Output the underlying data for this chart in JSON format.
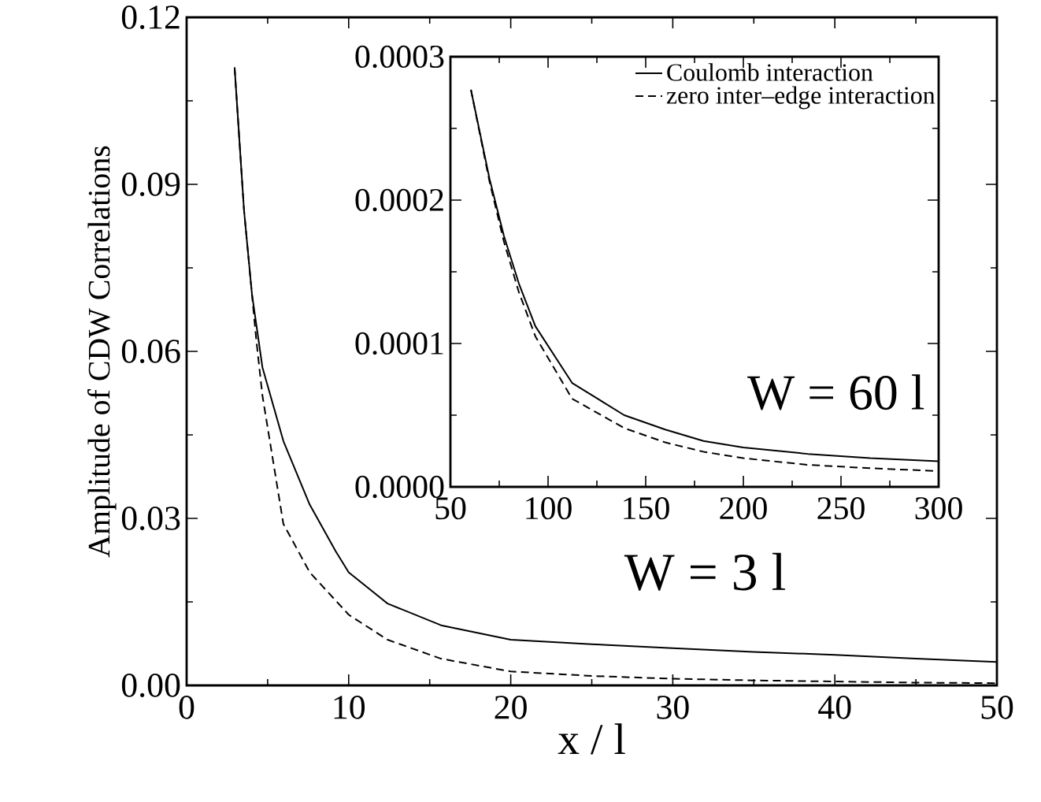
{
  "chart_data": [
    {
      "type": "line",
      "xlabel": "x / l",
      "ylabel": "Amplitude of CDW Correlations",
      "xlim": [
        0,
        50
      ],
      "xticks": [
        0,
        10,
        20,
        30,
        40,
        50
      ],
      "ylim": [
        0,
        0.12
      ],
      "yticks": [
        {
          "value": 0,
          "label": "0.00"
        },
        0.03,
        0.06,
        0.09,
        0.12
      ],
      "series": [
        {
          "color": "#000000",
          "line_style": "solid",
          "x": [
            2.96,
            3.54,
            4.03,
            4.68,
            5.97,
            7.59,
            9.2,
            10.0,
            12.4,
            15.7,
            20,
            25,
            30,
            35,
            40,
            45,
            50
          ],
          "values": [
            0.111,
            0.0854,
            0.0703,
            0.0571,
            0.0439,
            0.0325,
            0.0241,
            0.0203,
            0.0147,
            0.0108,
            0.0082,
            0.0074,
            0.0067,
            0.006,
            0.0055,
            0.0048,
            0.0042
          ]
        },
        {
          "color": "#000000",
          "line_style": "dashed",
          "x": [
            2.96,
            3.54,
            4.03,
            4.3,
            4.68,
            5.97,
            7.6,
            10.0,
            12.4,
            15.7,
            20,
            25,
            30,
            35,
            40,
            45,
            50
          ],
          "values": [
            0.111,
            0.0854,
            0.0703,
            0.062,
            0.052,
            0.029,
            0.0203,
            0.0127,
            0.0082,
            0.0048,
            0.0025,
            0.0017,
            0.0012,
            0.0009,
            0.0007,
            0.0005,
            0.0004
          ]
        }
      ],
      "annotations": [
        "W =  3 l"
      ]
    },
    {
      "type": "line",
      "xlim": [
        50,
        300
      ],
      "xticks": [
        50,
        100,
        150,
        200,
        250,
        300
      ],
      "ylim": [
        0,
        0.0003
      ],
      "yticks": [
        {
          "value": 0,
          "label": "0.0000"
        },
        0.0001,
        0.0002,
        0.0003
      ],
      "legend": "top right",
      "series": [
        {
          "name": "Coulomb interaction",
          "color": "#000000",
          "line_style": "solid",
          "x": [
            60.5,
            70,
            77.4,
            85,
            93.5,
            112.3,
            139,
            160,
            179.6,
            200,
            233,
            265,
            300
          ],
          "values": [
            0.000277,
            0.000215,
            0.000175,
            0.000142,
            0.000112,
            7.25e-05,
            5e-05,
            4e-05,
            3.2e-05,
            2.75e-05,
            2.3e-05,
            2e-05,
            1.79e-05
          ]
        },
        {
          "name": "zero inter–edge interaction",
          "color": "#000000",
          "line_style": "dashed",
          "x": [
            60.5,
            70,
            77.4,
            85,
            93.5,
            112.3,
            139,
            160,
            179.6,
            200,
            233,
            265,
            300
          ],
          "values": [
            0.000277,
            0.000213,
            0.000171,
            0.000136,
            0.000105,
            6.15e-05,
            4.1e-05,
            3.1e-05,
            2.45e-05,
            2e-05,
            1.54e-05,
            1.3e-05,
            1.1e-05
          ]
        }
      ],
      "annotations": [
        "W = 60 l"
      ]
    }
  ]
}
